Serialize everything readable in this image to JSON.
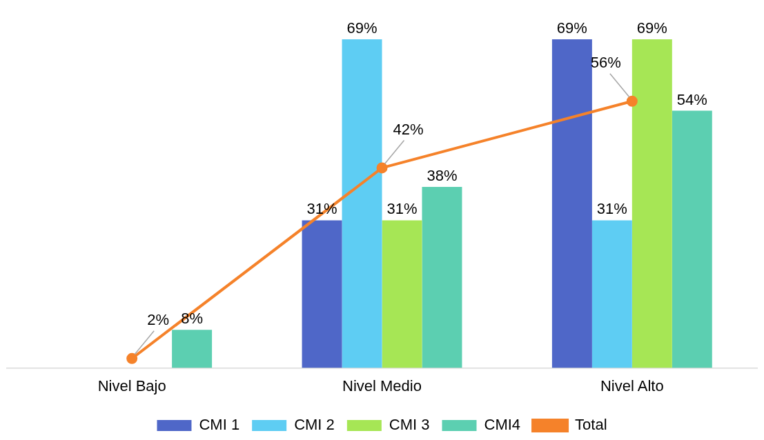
{
  "chart_data": {
    "type": "bar",
    "categories": [
      "Nivel Bajo",
      "Nivel Medio",
      "Nivel Alto"
    ],
    "series": [
      {
        "name": "CMI 1",
        "color": "#4f67c8",
        "values": [
          null,
          31,
          69
        ],
        "value_labels": [
          null,
          "31%",
          "69%"
        ]
      },
      {
        "name": "CMI 2",
        "color": "#5ecdf3",
        "values": [
          null,
          69,
          31
        ],
        "value_labels": [
          null,
          "69%",
          "31%"
        ]
      },
      {
        "name": "CMI 3",
        "color": "#a6e655",
        "values": [
          null,
          31,
          69
        ],
        "value_labels": [
          null,
          "31%",
          "69%"
        ]
      },
      {
        "name": "CMI4",
        "color": "#5ccfb1",
        "values": [
          8,
          38,
          54
        ],
        "value_labels": [
          "8%",
          "38%",
          "54%"
        ]
      },
      {
        "name": "Total",
        "type": "line",
        "color": "#f5822a",
        "marker": "circle",
        "values": [
          2,
          42,
          56
        ],
        "value_labels": [
          "2%",
          "42%",
          "56%"
        ]
      }
    ],
    "legend": "bottom",
    "grid": false,
    "tick_labels": "x"
  }
}
